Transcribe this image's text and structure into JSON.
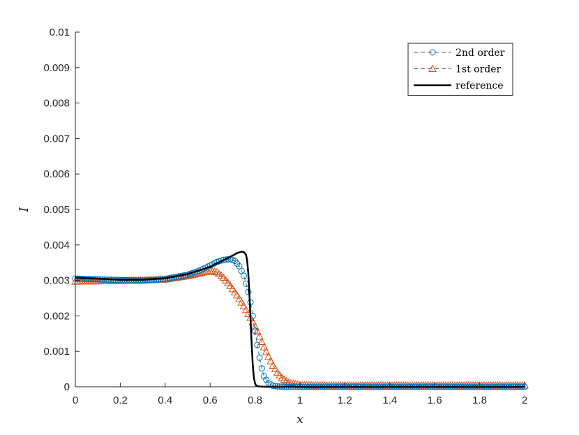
{
  "chart_data": {
    "type": "line",
    "title": "",
    "xlabel": "x",
    "ylabel": "I",
    "xlim": [
      0,
      2
    ],
    "ylim": [
      0,
      0.01
    ],
    "xticks": [
      0,
      0.2,
      0.4,
      0.6,
      0.8,
      1,
      1.2,
      1.4,
      1.6,
      1.8,
      2
    ],
    "xtick_labels": [
      "0",
      "0.2",
      "0.4",
      "0.6",
      "0.8",
      "1",
      "1.2",
      "1.4",
      "1.6",
      "1.8",
      "2"
    ],
    "yticks": [
      0,
      0.001,
      0.002,
      0.003,
      0.004,
      0.005,
      0.006,
      0.007,
      0.008,
      0.009,
      0.01
    ],
    "ytick_labels": [
      "0",
      "0.001",
      "0.002",
      "0.003",
      "0.004",
      "0.005",
      "0.006",
      "0.007",
      "0.008",
      "0.009",
      "0.01"
    ],
    "grid": false,
    "legend_position": "top-right",
    "series": [
      {
        "name": "2nd order",
        "color": "#0072BD",
        "marker": "circle",
        "line_style": "dashed",
        "x": [
          0,
          0.1,
          0.2,
          0.3,
          0.4,
          0.5,
          0.55,
          0.6,
          0.63,
          0.66,
          0.69,
          0.71,
          0.73,
          0.75,
          0.77,
          0.78,
          0.79,
          0.8,
          0.81,
          0.82,
          0.83,
          0.84,
          0.86,
          0.88,
          0.9,
          0.95,
          1.0,
          1.2,
          1.4,
          1.6,
          1.8,
          2.0
        ],
        "y": [
          0.00305,
          0.00303,
          0.00301,
          0.003,
          0.00304,
          0.00316,
          0.00327,
          0.00342,
          0.00352,
          0.00358,
          0.0036,
          0.00355,
          0.0034,
          0.00313,
          0.00268,
          0.00238,
          0.002,
          0.00158,
          0.00118,
          0.00082,
          0.00052,
          0.0003,
          0.0001,
          3e-05,
          1e-05,
          0.0,
          0.0,
          0.0,
          0.0,
          0.0,
          0.0,
          0.0
        ]
      },
      {
        "name": "1st order",
        "color": "#D95319",
        "marker": "triangle",
        "line_style": "dashed",
        "x": [
          0,
          0.1,
          0.2,
          0.3,
          0.4,
          0.5,
          0.55,
          0.6,
          0.63,
          0.66,
          0.69,
          0.72,
          0.75,
          0.78,
          0.8,
          0.82,
          0.84,
          0.86,
          0.88,
          0.9,
          0.92,
          0.95,
          1.0,
          1.1,
          1.2,
          1.4,
          1.6,
          1.8,
          2.0
        ],
        "y": [
          0.00297,
          0.00298,
          0.00299,
          0.003,
          0.00303,
          0.00313,
          0.0032,
          0.00327,
          0.00323,
          0.00308,
          0.00285,
          0.00258,
          0.00228,
          0.00195,
          0.0017,
          0.00142,
          0.00112,
          0.00085,
          0.0006,
          0.0004,
          0.00025,
          0.00012,
          5e-05,
          4e-05,
          4e-05,
          4e-05,
          4e-05,
          4e-05,
          4e-05
        ]
      },
      {
        "name": "reference",
        "color": "#000000",
        "marker": "none",
        "line_style": "solid",
        "x": [
          0,
          0.1,
          0.2,
          0.3,
          0.4,
          0.5,
          0.6,
          0.65,
          0.7,
          0.72,
          0.74,
          0.75,
          0.76,
          0.765,
          0.77,
          0.775,
          0.78,
          0.785,
          0.79,
          0.795,
          0.8,
          0.805,
          0.81,
          0.82,
          0.85,
          0.9,
          1.0,
          1.5,
          2.0
        ],
        "y": [
          0.00308,
          0.00305,
          0.00302,
          0.00302,
          0.00306,
          0.00318,
          0.00338,
          0.00354,
          0.0037,
          0.00377,
          0.00381,
          0.0038,
          0.00372,
          0.00355,
          0.0032,
          0.0026,
          0.0019,
          0.0012,
          0.0006,
          0.00025,
          0.0001,
          4e-05,
          2e-05,
          1e-05,
          0.0,
          0.0,
          0.0,
          0.0,
          0.0
        ]
      }
    ]
  }
}
